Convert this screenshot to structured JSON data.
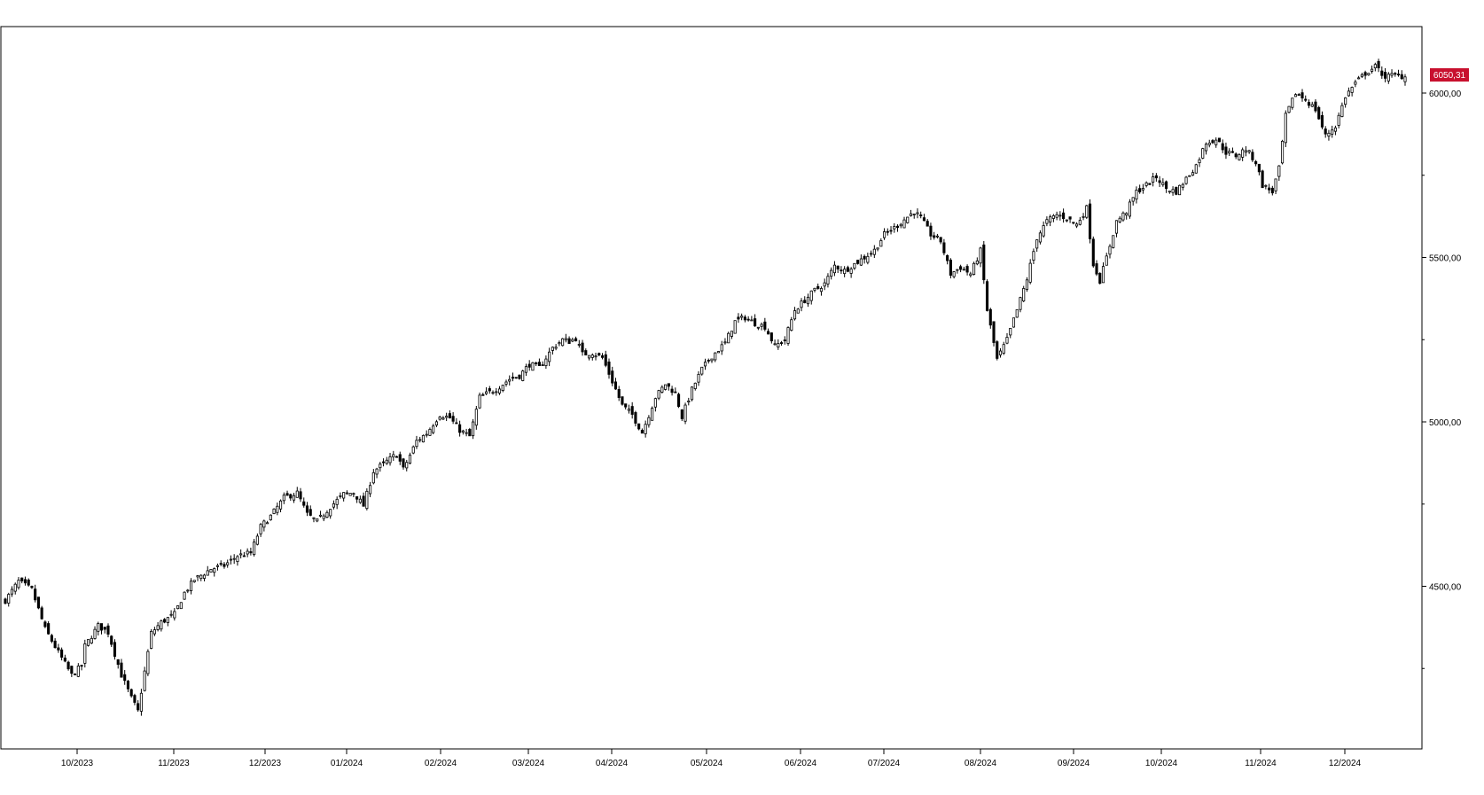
{
  "chart_data": {
    "type": "candlestick",
    "title": "",
    "xlabel": "",
    "ylabel": "",
    "grid": false,
    "ylim": [
      3950,
      6200
    ],
    "y_ticks": [
      {
        "value": 4500,
        "label": "4500,00"
      },
      {
        "value": 5000,
        "label": "5000,00"
      },
      {
        "value": 5500,
        "label": "5500,00"
      },
      {
        "value": 6000,
        "label": "6000,00"
      }
    ],
    "x_ticks": [
      "10/2023",
      "11/2023",
      "12/2023",
      "01/2024",
      "02/2024",
      "03/2024",
      "04/2024",
      "05/2024",
      "06/2024",
      "07/2024",
      "08/2024",
      "09/2024",
      "10/2024",
      "11/2024",
      "12/2024"
    ],
    "last_value_label": "6050,31",
    "colors": {
      "up_fill": "#ffffff",
      "down_fill": "#000000",
      "candle_stroke": "#000000",
      "last_value_bg": "#c8102e",
      "last_value_text": "#ffffff",
      "frame": "#000000"
    },
    "series": [
      {
        "name": "",
        "approx_closes": [
          [
            0,
            4457
          ],
          [
            4,
            4515
          ],
          [
            8,
            4490
          ],
          [
            12,
            4370
          ],
          [
            16,
            4299
          ],
          [
            20,
            4230
          ],
          [
            23,
            4258
          ],
          [
            24,
            4318
          ],
          [
            28,
            4380
          ],
          [
            31,
            4360
          ],
          [
            35,
            4230
          ],
          [
            38,
            4160
          ],
          [
            40,
            4120
          ],
          [
            42,
            4240
          ],
          [
            44,
            4358
          ],
          [
            47,
            4390
          ],
          [
            51,
            4415
          ],
          [
            54,
            4480
          ],
          [
            57,
            4520
          ],
          [
            62,
            4553
          ],
          [
            66,
            4563
          ],
          [
            70,
            4593
          ],
          [
            74,
            4601
          ],
          [
            77,
            4681
          ],
          [
            80,
            4713
          ],
          [
            84,
            4769
          ],
          [
            88,
            4784
          ],
          [
            91,
            4719
          ],
          [
            94,
            4697
          ],
          [
            98,
            4742
          ],
          [
            102,
            4780
          ],
          [
            105,
            4785
          ],
          [
            108,
            4745
          ],
          [
            111,
            4850
          ],
          [
            115,
            4880
          ],
          [
            118,
            4902
          ],
          [
            120,
            4856
          ],
          [
            124,
            4942
          ],
          [
            127,
            4965
          ],
          [
            131,
            5022
          ],
          [
            134,
            5012
          ],
          [
            137,
            4975
          ],
          [
            140,
            4956
          ],
          [
            143,
            5075
          ],
          [
            148,
            5100
          ],
          [
            152,
            5130
          ],
          [
            155,
            5140
          ],
          [
            158,
            5175
          ],
          [
            161,
            5165
          ],
          [
            165,
            5225
          ],
          [
            168,
            5250
          ],
          [
            170,
            5245
          ],
          [
            172,
            5254
          ],
          [
            174,
            5206
          ],
          [
            177,
            5210
          ],
          [
            180,
            5195
          ],
          [
            183,
            5123
          ],
          [
            186,
            5050
          ],
          [
            189,
            5022
          ],
          [
            192,
            4968
          ],
          [
            194,
            5021
          ],
          [
            196,
            5075
          ],
          [
            199,
            5115
          ],
          [
            202,
            5088
          ],
          [
            204,
            5015
          ],
          [
            207,
            5098
          ],
          [
            210,
            5160
          ],
          [
            213,
            5200
          ],
          [
            217,
            5240
          ],
          [
            220,
            5305
          ],
          [
            223,
            5318
          ],
          [
            226,
            5300
          ],
          [
            229,
            5290
          ],
          [
            232,
            5230
          ],
          [
            235,
            5250
          ],
          [
            238,
            5340
          ],
          [
            241,
            5370
          ],
          [
            244,
            5400
          ],
          [
            247,
            5420
          ],
          [
            250,
            5475
          ],
          [
            253,
            5460
          ],
          [
            256,
            5480
          ],
          [
            259,
            5500
          ],
          [
            262,
            5522
          ],
          [
            265,
            5570
          ],
          [
            268,
            5590
          ],
          [
            271,
            5615
          ],
          [
            274,
            5640
          ],
          [
            276,
            5620
          ],
          [
            279,
            5570
          ],
          [
            282,
            5550
          ],
          [
            285,
            5450
          ],
          [
            288,
            5470
          ],
          [
            291,
            5450
          ],
          [
            294,
            5520
          ],
          [
            296,
            5340
          ],
          [
            299,
            5190
          ],
          [
            302,
            5250
          ],
          [
            305,
            5340
          ],
          [
            308,
            5435
          ],
          [
            311,
            5560
          ],
          [
            314,
            5610
          ],
          [
            317,
            5630
          ],
          [
            320,
            5620
          ],
          [
            323,
            5600
          ],
          [
            326,
            5650
          ],
          [
            328,
            5480
          ],
          [
            330,
            5430
          ],
          [
            332,
            5500
          ],
          [
            335,
            5610
          ],
          [
            338,
            5640
          ],
          [
            341,
            5700
          ],
          [
            344,
            5720
          ],
          [
            347,
            5745
          ],
          [
            350,
            5710
          ],
          [
            353,
            5700
          ],
          [
            356,
            5740
          ],
          [
            359,
            5780
          ],
          [
            362,
            5850
          ],
          [
            365,
            5860
          ],
          [
            368,
            5820
          ],
          [
            371,
            5810
          ],
          [
            374,
            5830
          ],
          [
            377,
            5790
          ],
          [
            379,
            5720
          ],
          [
            382,
            5700
          ],
          [
            384,
            5770
          ],
          [
            386,
            5930
          ],
          [
            389,
            6000
          ],
          [
            392,
            5980
          ],
          [
            395,
            5950
          ],
          [
            398,
            5870
          ],
          [
            401,
            5900
          ],
          [
            404,
            5990
          ],
          [
            407,
            6030
          ],
          [
            410,
            6060
          ],
          [
            413,
            6080
          ],
          [
            416,
            6050
          ],
          [
            419,
            6055
          ],
          [
            422,
            6050
          ]
        ]
      }
    ]
  }
}
